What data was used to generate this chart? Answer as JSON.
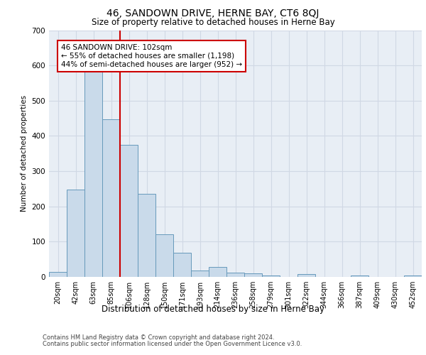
{
  "title": "46, SANDOWN DRIVE, HERNE BAY, CT6 8QJ",
  "subtitle": "Size of property relative to detached houses in Herne Bay",
  "xlabel": "Distribution of detached houses by size in Herne Bay",
  "ylabel": "Number of detached properties",
  "categories": [
    "20sqm",
    "42sqm",
    "63sqm",
    "85sqm",
    "106sqm",
    "128sqm",
    "150sqm",
    "171sqm",
    "193sqm",
    "214sqm",
    "236sqm",
    "258sqm",
    "279sqm",
    "301sqm",
    "322sqm",
    "344sqm",
    "366sqm",
    "387sqm",
    "409sqm",
    "430sqm",
    "452sqm"
  ],
  "bar_values": [
    15,
    248,
    585,
    448,
    375,
    235,
    120,
    68,
    18,
    29,
    12,
    11,
    5,
    0,
    8,
    0,
    0,
    5,
    0,
    0,
    5
  ],
  "bar_color": "#c9daea",
  "bar_edge_color": "#6699bb",
  "grid_color": "#d0d8e4",
  "background_color": "#e8eef5",
  "vline_color": "#cc0000",
  "vline_x": 3.5,
  "annotation_text": "46 SANDOWN DRIVE: 102sqm\n← 55% of detached houses are smaller (1,198)\n44% of semi-detached houses are larger (952) →",
  "annotation_box_color": "#ffffff",
  "annotation_box_edge": "#cc0000",
  "ylim": [
    0,
    700
  ],
  "yticks": [
    0,
    100,
    200,
    300,
    400,
    500,
    600,
    700
  ],
  "footer1": "Contains HM Land Registry data © Crown copyright and database right 2024.",
  "footer2": "Contains public sector information licensed under the Open Government Licence v3.0."
}
